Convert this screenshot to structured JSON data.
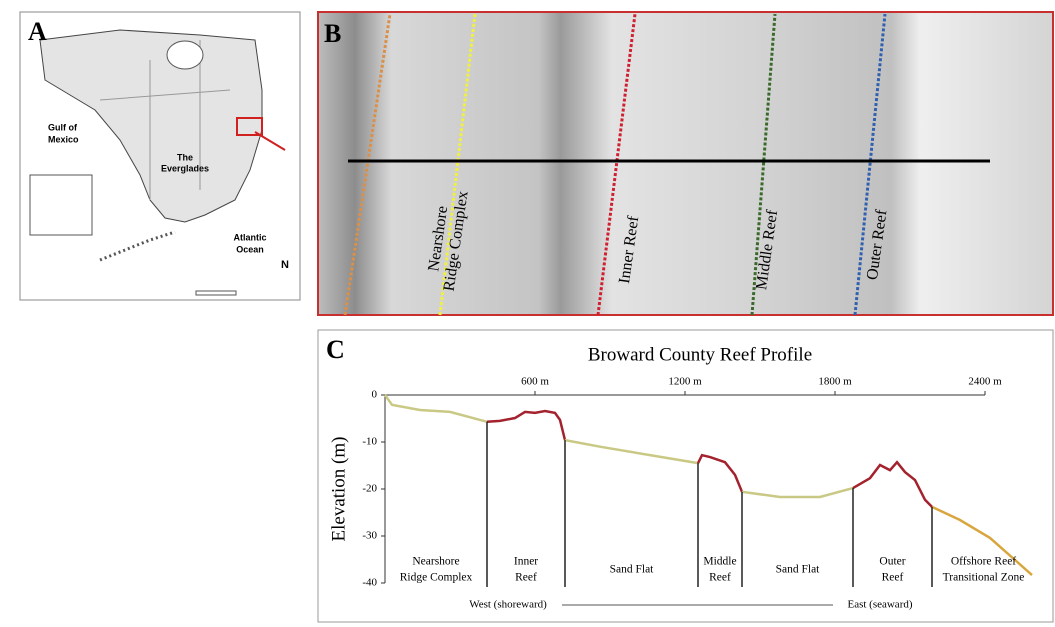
{
  "figure": {
    "panel_a": {
      "letter": "A",
      "labels": [
        "Gulf of",
        "Mexico",
        "The",
        "Everglades",
        "Atlantic",
        "Ocean",
        "N"
      ]
    },
    "panel_b": {
      "letter": "B",
      "labels": [
        [
          "Nearshore",
          "Ridge Complex"
        ],
        [
          "Inner Reef"
        ],
        [
          "Middle Reef"
        ],
        [
          "Outer Reef"
        ]
      ]
    },
    "panel_c": {
      "letter": "C"
    }
  },
  "chart_data": {
    "type": "line",
    "title": "Broward County Reef Profile",
    "y_label": "Elevation (m)",
    "xlim": [
      0,
      2600
    ],
    "xticks": [
      {
        "value": 600,
        "label": "600 m"
      },
      {
        "value": 1200,
        "label": "1200 m"
      },
      {
        "value": 1800,
        "label": "1800 m"
      },
      {
        "value": 2400,
        "label": "2400 m"
      }
    ],
    "ylim": [
      -40,
      0
    ],
    "yticks": [
      0,
      -10,
      -20,
      -30,
      -40
    ],
    "series": [
      {
        "color": "#c9c985",
        "x": [
          0,
          28,
          140,
          260,
          408
        ],
        "values": [
          0,
          -2.1,
          -3.2,
          -3.6,
          -5.7
        ]
      },
      {
        "color": "#a3222e",
        "x": [
          408,
          460,
          520,
          560,
          600,
          640,
          680,
          700,
          720
        ],
        "values": [
          -5.7,
          -5.5,
          -4.9,
          -3.6,
          -3.8,
          -3.4,
          -3.8,
          -5.3,
          -9.6
        ]
      },
      {
        "color": "#c9c985",
        "x": [
          720,
          860,
          1060,
          1252
        ],
        "values": [
          -9.6,
          -11,
          -12.8,
          -14.5
        ]
      },
      {
        "color": "#a3222e",
        "x": [
          1252,
          1268,
          1300,
          1360,
          1400,
          1428
        ],
        "values": [
          -14.5,
          -12.8,
          -13.2,
          -14.3,
          -17,
          -20.6
        ]
      },
      {
        "color": "#c9c985",
        "x": [
          1428,
          1580,
          1740,
          1872
        ],
        "values": [
          -20.6,
          -21.7,
          -21.7,
          -19.8
        ]
      },
      {
        "color": "#a3222e",
        "x": [
          1872,
          1940,
          1980,
          2020,
          2048,
          2080,
          2120,
          2160,
          2188
        ],
        "values": [
          -19.8,
          -17.7,
          -14.9,
          -16,
          -14.3,
          -16.4,
          -18.1,
          -22.3,
          -23.8
        ]
      },
      {
        "color": "#d9a63e",
        "x": [
          2188,
          2300,
          2420,
          2588
        ],
        "values": [
          -23.8,
          -26.6,
          -30.4,
          -38.3
        ]
      }
    ],
    "boundaries": [
      408,
      720,
      1252,
      1428,
      1872,
      2188
    ],
    "zones": [
      [
        "Nearshore",
        "Ridge Complex"
      ],
      [
        "Inner",
        "Reef"
      ],
      [
        "Sand Flat"
      ],
      [
        "Middle",
        "Reef"
      ],
      [
        "Sand Flat"
      ],
      [
        "Outer",
        "Reef"
      ],
      [
        "Offshore Reef",
        "Transitional Zone"
      ]
    ],
    "annotations": [
      "West (shoreward)",
      "East (seaward)"
    ]
  }
}
